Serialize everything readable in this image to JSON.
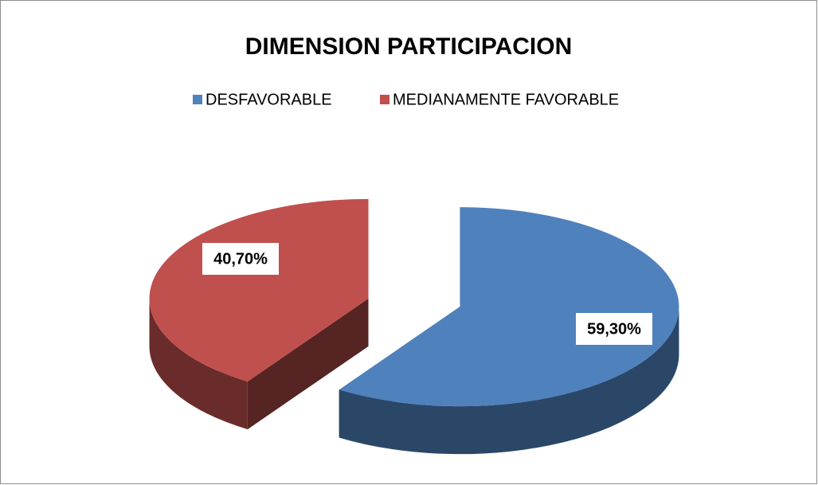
{
  "chart_data": {
    "type": "pie",
    "title": "DIMENSION PARTICIPACION",
    "categories": [
      "DESFAVORABLE",
      "MEDIANAMENTE FAVORABLE"
    ],
    "values": [
      59.3,
      40.7
    ],
    "value_labels": [
      "59,30%",
      "40,70%"
    ],
    "colors": [
      "#4f81bd",
      "#c0504d"
    ],
    "legend": "top"
  }
}
